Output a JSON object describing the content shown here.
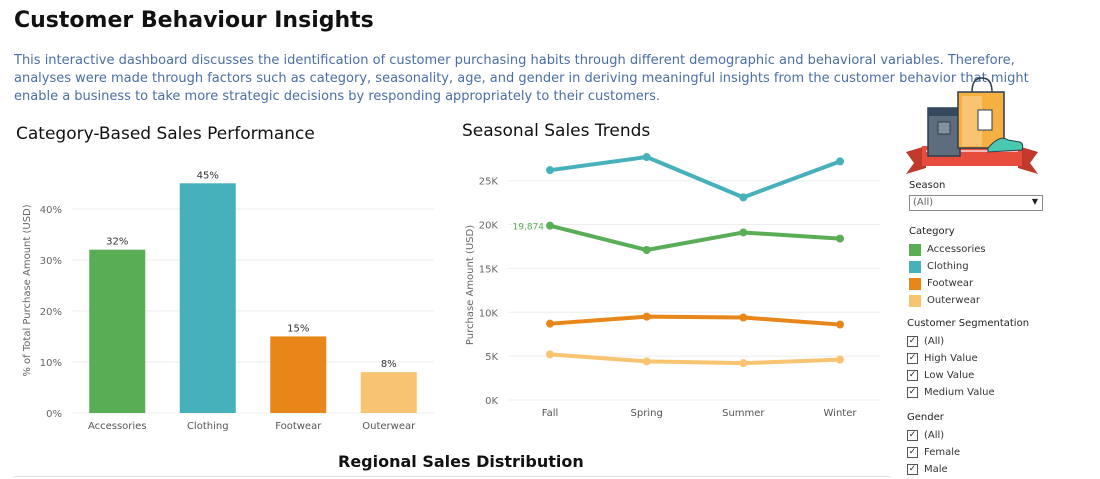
{
  "page": {
    "title": "Customer Behaviour Insights",
    "description": "This interactive dashboard discusses the identification of customer purchasing habits through different demographic and behavioral variables. Therefore, analyses were made through factors such as category, seasonality, age, and gender in deriving meaningful insights from the customer behavior that might enable a business to take more strategic decisions by responding appropriately to their customers.",
    "bottom_title": "Regional Sales Distribution"
  },
  "colors": {
    "accessories": "#59ae55",
    "clothing": "#46b0bb",
    "footwear": "#e8861a",
    "outerwear": "#f8c471"
  },
  "chart_data": [
    {
      "type": "bar",
      "title": "Category-Based Sales Performance",
      "ylabel": "% of Total Purchase Amount (USD)",
      "categories": [
        "Accessories",
        "Clothing",
        "Footwear",
        "Outerwear"
      ],
      "values": [
        32,
        45,
        15,
        8
      ],
      "value_labels": [
        "32%",
        "45%",
        "15%",
        "8%"
      ],
      "ylim": [
        0,
        48
      ],
      "yticks": [
        0,
        10,
        20,
        30,
        40
      ],
      "ytick_labels": [
        "0%",
        "10%",
        "20%",
        "30%",
        "40%"
      ],
      "grid": true
    },
    {
      "type": "line",
      "title": "Seasonal Sales Trends",
      "ylabel": "Purchase Amount (USD)",
      "x": [
        "Fall",
        "Spring",
        "Summer",
        "Winter"
      ],
      "ylim": [
        0,
        28500
      ],
      "yticks": [
        0,
        5000,
        10000,
        15000,
        20000,
        25000
      ],
      "ytick_labels": [
        "0K",
        "5K",
        "10K",
        "15K",
        "20K",
        "25K"
      ],
      "series": [
        {
          "name": "Clothing",
          "values": [
            26200,
            27700,
            23100,
            27200
          ]
        },
        {
          "name": "Accessories",
          "values": [
            19874,
            17100,
            19100,
            18400
          ]
        },
        {
          "name": "Footwear",
          "values": [
            8700,
            9500,
            9400,
            8600
          ]
        },
        {
          "name": "Outerwear",
          "values": [
            5200,
            4400,
            4200,
            4600
          ]
        }
      ],
      "annotation": "19,874",
      "grid": true
    }
  ],
  "filters": {
    "season": {
      "title": "Season",
      "value": "(All)"
    },
    "category_legend": {
      "title": "Category",
      "items": [
        "Accessories",
        "Clothing",
        "Footwear",
        "Outerwear"
      ]
    },
    "segmentation": {
      "title": "Customer Segmentation",
      "items": [
        "(All)",
        "High Value",
        "Low Value",
        "Medium Value"
      ]
    },
    "gender": {
      "title": "Gender",
      "items": [
        "(All)",
        "Female",
        "Male"
      ]
    }
  }
}
